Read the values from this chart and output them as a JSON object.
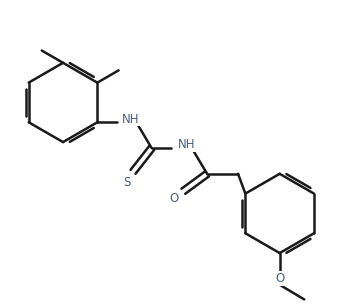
{
  "background_color": "#ffffff",
  "line_color": "#1a1a1a",
  "heteroatom_color": "#4a6080",
  "bond_width": 1.8,
  "figsize": [
    3.48,
    3.04
  ],
  "dpi": 100,
  "xlim": [
    0,
    8.7
  ],
  "ylim": [
    0,
    7.6
  ]
}
